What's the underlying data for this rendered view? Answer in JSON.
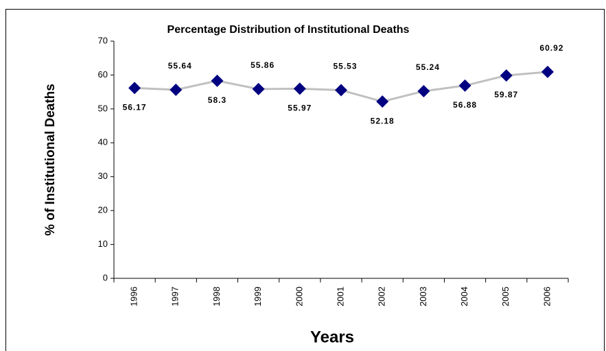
{
  "chart_data": {
    "type": "line",
    "title": "Percentage Distribution of Institutional Deaths",
    "x_label": "Years",
    "y_label": "% of Institutional Deaths",
    "categories": [
      "1996",
      "1997",
      "1998",
      "1999",
      "2000",
      "2001",
      "2002",
      "2003",
      "2004",
      "2005",
      "2006"
    ],
    "series": [
      {
        "name": "Institutional Deaths",
        "line_color": "#c0c0c0",
        "marker_color": "#000080",
        "values": [
          56.17,
          55.64,
          58.3,
          55.86,
          55.97,
          55.53,
          52.18,
          55.24,
          56.88,
          59.87,
          60.92
        ]
      }
    ],
    "ylim": [
      0,
      70
    ],
    "yticks": [
      0,
      10,
      20,
      30,
      40,
      50,
      60,
      70
    ],
    "grid": false
  }
}
